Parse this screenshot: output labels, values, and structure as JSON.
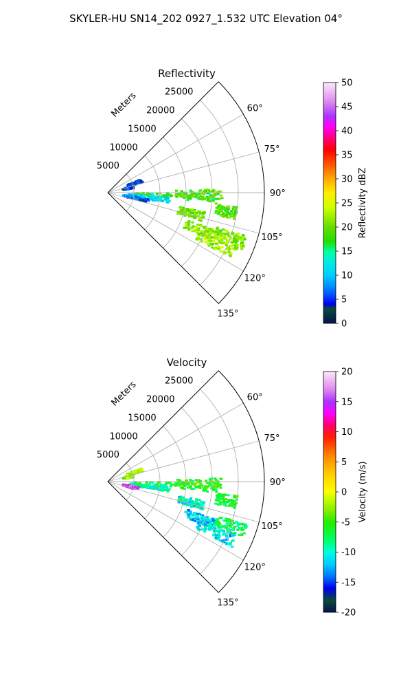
{
  "suptitle": "SKYLER-HU  SN14_202  0927_1.532 UTC Elevation 04°",
  "chart_data": [
    {
      "type": "heatmap",
      "projection": "polar-sector",
      "title": "Reflectivity",
      "range_label": "Meters",
      "range_ticks": [
        "5000",
        "10000",
        "15000",
        "20000",
        "25000"
      ],
      "range_values": [
        5000,
        10000,
        15000,
        20000,
        25000
      ],
      "range_max": 30000,
      "azimuth_ticks": [
        "60°",
        "75°",
        "90°",
        "105°",
        "120°",
        "135°"
      ],
      "azimuth_values": [
        60,
        75,
        90,
        105,
        120,
        135
      ],
      "azimuth_range": [
        45,
        135
      ],
      "grid": true,
      "colorbar": {
        "label": "Reflectivity dBZ",
        "min": 0,
        "max": 50,
        "tick_labels": [
          "0",
          "5",
          "10",
          "15",
          "20",
          "25",
          "30",
          "35",
          "40",
          "45",
          "50"
        ],
        "stops": [
          [
            0,
            "#08124a"
          ],
          [
            3,
            "#0a4a3a"
          ],
          [
            4,
            "#0000ee"
          ],
          [
            6,
            "#0055ff"
          ],
          [
            8,
            "#0099ff"
          ],
          [
            10,
            "#00ccff"
          ],
          [
            13,
            "#00eedd"
          ],
          [
            15,
            "#00ff99"
          ],
          [
            17,
            "#22dd00"
          ],
          [
            20,
            "#66dd00"
          ],
          [
            24,
            "#ccff00"
          ],
          [
            27,
            "#ffee00"
          ],
          [
            30,
            "#ffaa00"
          ],
          [
            33,
            "#ff5500"
          ],
          [
            36,
            "#ff0000"
          ],
          [
            38,
            "#ff0066"
          ],
          [
            41,
            "#ff00ff"
          ],
          [
            43,
            "#aa33ff"
          ],
          [
            46,
            "#dd88ee"
          ],
          [
            50,
            "#fbe8fb"
          ]
        ]
      },
      "echoes": [
        {
          "az": 93,
          "r": [
            5000,
            21000
          ],
          "value": 17
        },
        {
          "az": 91,
          "r": [
            13000,
            22000
          ],
          "value": 19
        },
        {
          "az": 97,
          "r": [
            4000,
            12000
          ],
          "value": 11
        },
        {
          "az": 101,
          "r": [
            3000,
            8000
          ],
          "value": 6
        },
        {
          "az": 104,
          "r": [
            14000,
            19000
          ],
          "value": 20
        },
        {
          "az": 112,
          "r": [
            16000,
            22000
          ],
          "value": 21
        },
        {
          "az": 115,
          "r": [
            19000,
            27000
          ],
          "value": 22
        },
        {
          "az": 110,
          "r": [
            22000,
            28000
          ],
          "value": 21
        },
        {
          "az": 99,
          "r": [
            21000,
            25000
          ],
          "value": 19
        },
        {
          "az": 78,
          "r": [
            3000,
            5000
          ],
          "value": 5
        },
        {
          "az": 71,
          "r": [
            4000,
            7000
          ],
          "value": 4
        }
      ]
    },
    {
      "type": "heatmap",
      "projection": "polar-sector",
      "title": "Velocity",
      "range_label": "Meters",
      "range_ticks": [
        "5000",
        "10000",
        "15000",
        "20000",
        "25000"
      ],
      "range_values": [
        5000,
        10000,
        15000,
        20000,
        25000
      ],
      "range_max": 30000,
      "azimuth_ticks": [
        "60°",
        "75°",
        "90°",
        "105°",
        "120°",
        "135°"
      ],
      "azimuth_values": [
        60,
        75,
        90,
        105,
        120,
        135
      ],
      "azimuth_range": [
        45,
        135
      ],
      "grid": true,
      "colorbar": {
        "label": "Velocity (m/s)",
        "min": -20,
        "max": 20,
        "tick_labels": [
          "-20",
          "-15",
          "-10",
          "-5",
          "0",
          "5",
          "10",
          "15",
          "20"
        ],
        "stops": [
          [
            -20,
            "#08124a"
          ],
          [
            -18,
            "#0a4a3a"
          ],
          [
            -16,
            "#0000ee"
          ],
          [
            -14,
            "#0077ff"
          ],
          [
            -12,
            "#00ccff"
          ],
          [
            -10,
            "#00ffdd"
          ],
          [
            -8,
            "#00ff66"
          ],
          [
            -5,
            "#22ee00"
          ],
          [
            -3,
            "#88ee00"
          ],
          [
            -1,
            "#ccff00"
          ],
          [
            0,
            "#ffff00"
          ],
          [
            3,
            "#ffcc00"
          ],
          [
            6,
            "#ff8800"
          ],
          [
            9,
            "#ff2200"
          ],
          [
            11,
            "#ff0066"
          ],
          [
            13,
            "#ff00ff"
          ],
          [
            15,
            "#aa33ff"
          ],
          [
            17,
            "#dd88ee"
          ],
          [
            20,
            "#fbe8fb"
          ]
        ]
      },
      "echoes": [
        {
          "az": 93,
          "r": [
            5000,
            21000
          ],
          "value": -7
        },
        {
          "az": 91,
          "r": [
            13000,
            22000
          ],
          "value": -5
        },
        {
          "az": 97,
          "r": [
            4000,
            12000
          ],
          "value": -9
        },
        {
          "az": 103,
          "r": [
            3000,
            6000
          ],
          "value": 14
        },
        {
          "az": 104,
          "r": [
            14000,
            19000
          ],
          "value": -10
        },
        {
          "az": 112,
          "r": [
            16000,
            22000
          ],
          "value": -12
        },
        {
          "az": 115,
          "r": [
            19000,
            27000
          ],
          "value": -11
        },
        {
          "az": 110,
          "r": [
            22000,
            28000
          ],
          "value": -7
        },
        {
          "az": 99,
          "r": [
            21000,
            25000
          ],
          "value": -6
        },
        {
          "az": 78,
          "r": [
            3000,
            5000
          ],
          "value": -2
        },
        {
          "az": 71,
          "r": [
            4000,
            7000
          ],
          "value": -2
        }
      ]
    }
  ]
}
